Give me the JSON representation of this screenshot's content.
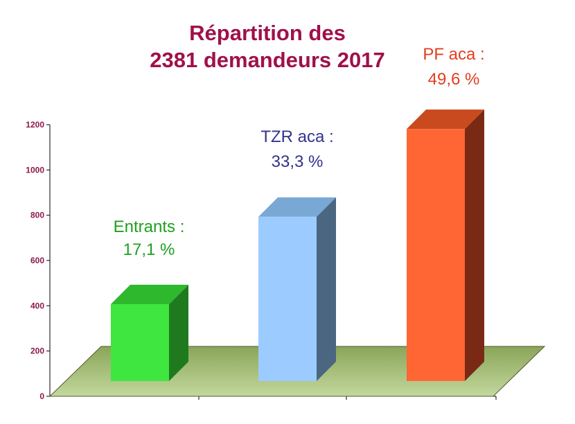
{
  "chart_data": {
    "type": "bar",
    "title_lines": [
      "Répartition des",
      "2381 demandeurs 2017"
    ],
    "xlabel": "",
    "ylabel": "",
    "ylim": [
      0,
      1200
    ],
    "yticks": [
      "0",
      "200",
      "400",
      "600",
      "800",
      "1000",
      "1200"
    ],
    "categories": [
      "Entrants",
      "TZR aca",
      "PF aca"
    ],
    "values": [
      407,
      793,
      1181
    ],
    "percent_labels": [
      "17,1 %",
      "33,3 %",
      "49,6 %"
    ],
    "bar_label_lines": [
      [
        "Entrants :",
        "17,1 %"
      ],
      [
        "TZR aca :",
        "33,3 %"
      ],
      [
        "PF aca :",
        "49,6 %"
      ]
    ],
    "grid": false,
    "legend": "none",
    "style": "3d-bars",
    "colors": {
      "title": "#A0104A",
      "tick_labels": "#8B1A4A",
      "axis": "#000000",
      "floor_top": "#8AA559",
      "floor_bottom": "#C3D89E",
      "bars": [
        {
          "front": "#3FE63F",
          "top": "#2DB82D",
          "side": "#1F7A1F",
          "label": "#1FA01F"
        },
        {
          "front": "#9CCCFF",
          "top": "#7AA8D4",
          "side": "#4B6680",
          "label": "#33338C"
        },
        {
          "front": "#FF6633",
          "top": "#C94A1F",
          "side": "#7A2A14",
          "label": "#E33D1F"
        }
      ]
    }
  }
}
